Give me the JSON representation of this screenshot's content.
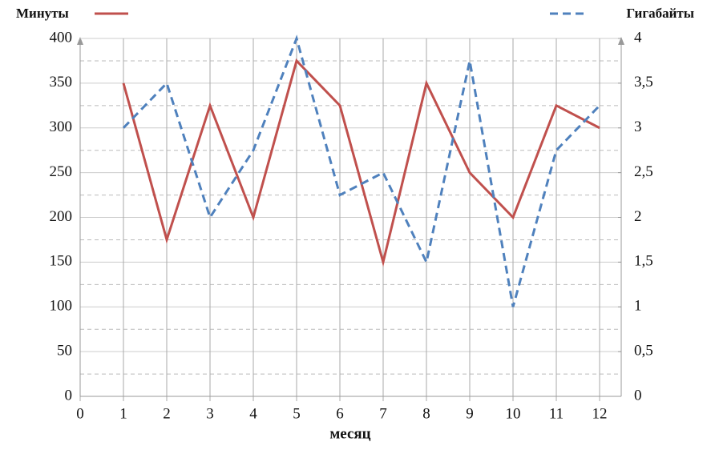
{
  "chart_data": {
    "type": "line",
    "x_label": "месяц",
    "x": [
      1,
      2,
      3,
      4,
      5,
      6,
      7,
      8,
      9,
      10,
      11,
      12
    ],
    "series": [
      {
        "name": "Минуты",
        "color": "#c0504d",
        "dash": "solid",
        "values": [
          350,
          175,
          325,
          200,
          375,
          325,
          150,
          350,
          250,
          200,
          325,
          300
        ]
      },
      {
        "name": "Гигабайты",
        "color": "#4f81bd",
        "dash": "dashdot",
        "axis": "y2",
        "values": [
          3,
          3.5,
          2,
          2.75,
          4,
          2.25,
          2.5,
          1.5,
          3.75,
          1,
          2.75,
          3.25
        ]
      }
    ],
    "xlim": [
      0,
      12.5
    ],
    "xticks": [
      0,
      1,
      2,
      3,
      4,
      5,
      6,
      7,
      8,
      9,
      10,
      11,
      12
    ],
    "ylim": [
      0,
      400
    ],
    "yticks": [
      0,
      50,
      100,
      150,
      200,
      250,
      300,
      350,
      400
    ],
    "y_minor_ticks": [
      25,
      75,
      125,
      175,
      225,
      275,
      325,
      375
    ],
    "y2lim": [
      0,
      4
    ],
    "y2ticks": [
      0,
      {
        "value": 0.5,
        "label": "0,5"
      },
      1,
      {
        "value": 1.5,
        "label": "1,5"
      },
      2,
      {
        "value": 2.5,
        "label": "2,5"
      },
      3,
      {
        "value": 3.5,
        "label": "3,5"
      },
      4
    ],
    "grid": true
  }
}
